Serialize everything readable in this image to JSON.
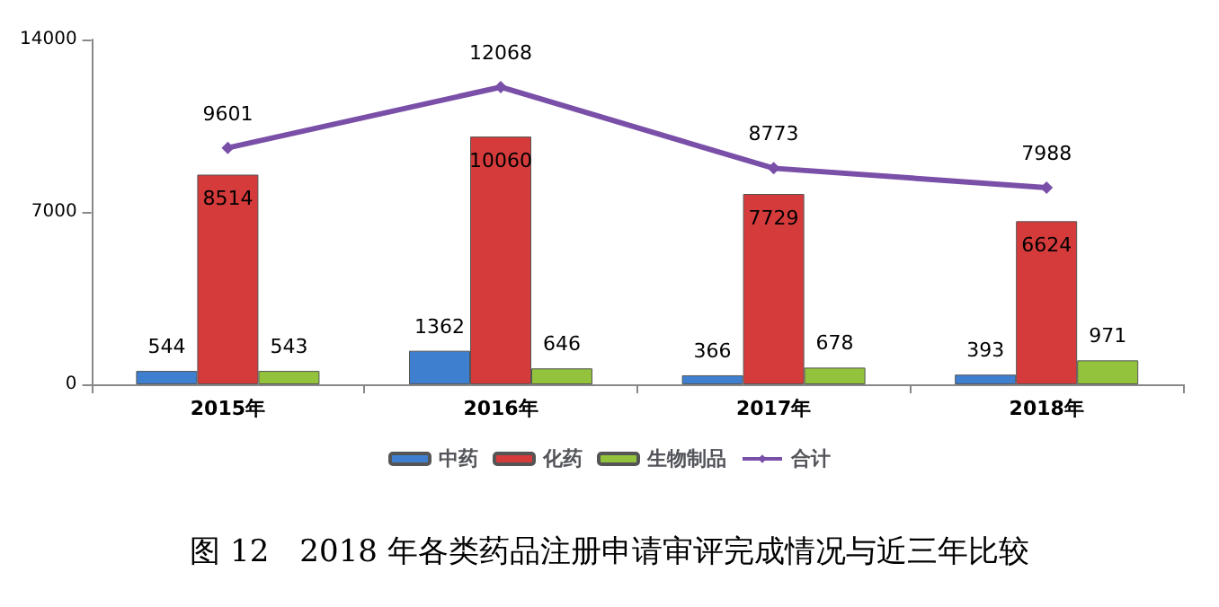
{
  "chart_data": {
    "type": "bar",
    "categories": [
      "2015年",
      "2016年",
      "2017年",
      "2018年"
    ],
    "series": [
      {
        "name": "中药",
        "color": "#3f7fd0",
        "values": [
          544,
          1362,
          366,
          393
        ]
      },
      {
        "name": "化药",
        "color": "#d63b3b",
        "values": [
          8514,
          10060,
          7729,
          6624
        ]
      },
      {
        "name": "生物制品",
        "color": "#93c23c",
        "values": [
          543,
          646,
          678,
          971
        ]
      },
      {
        "name": "合计",
        "type": "line",
        "color": "#7a4fa8",
        "marker": "diamond",
        "values": [
          9601,
          12068,
          8773,
          7988
        ]
      }
    ],
    "ylim": [
      0,
      14000
    ],
    "yticks": [
      0,
      7000,
      14000
    ],
    "grid": false,
    "legend": "bottom",
    "data_labels": true,
    "annotations": [
      "图 12　2018 年各类药品注册申请审评完成情况与近三年比较"
    ]
  }
}
